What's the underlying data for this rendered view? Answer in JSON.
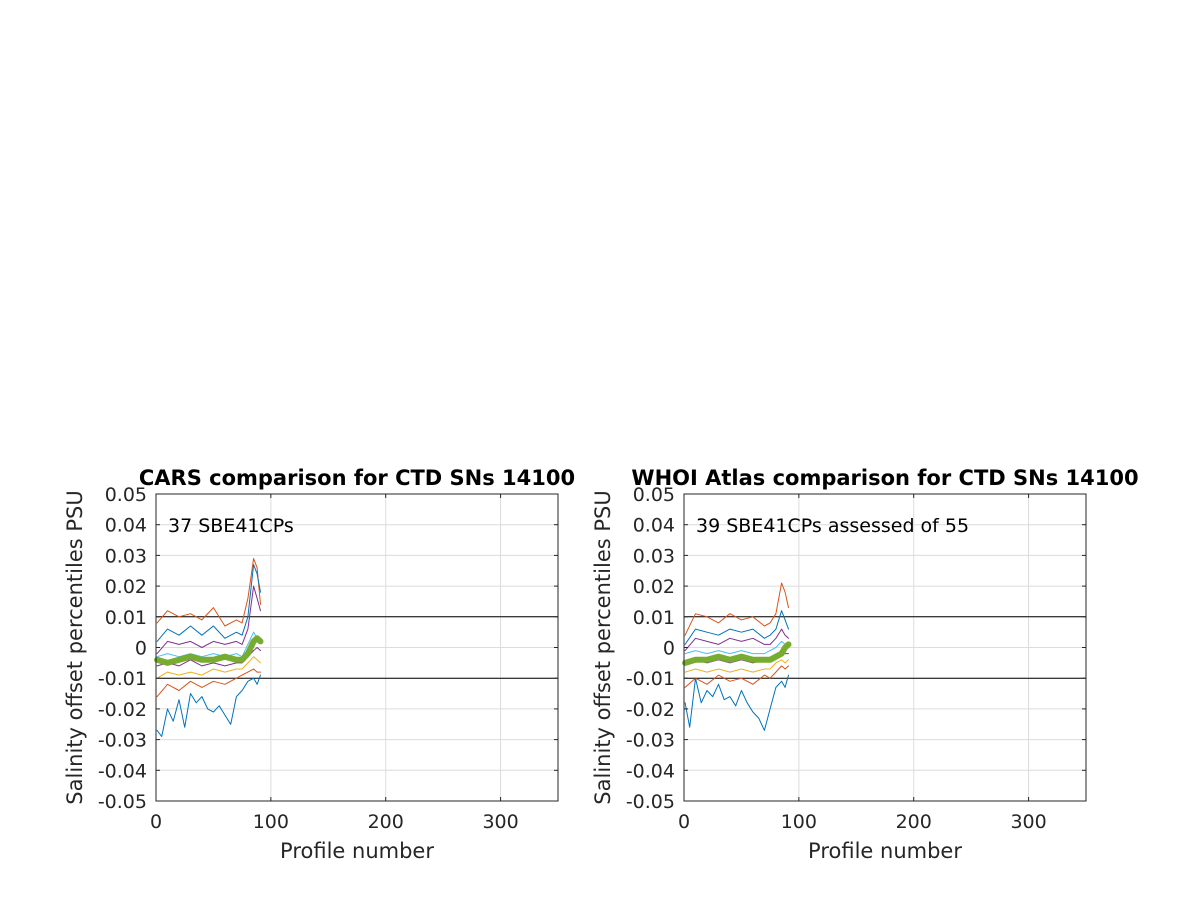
{
  "chart_data": [
    {
      "type": "line",
      "title": "CARS comparison for CTD SNs 14100",
      "xlabel": "Profile number",
      "ylabel": "Salinity offset percentiles PSU",
      "annotation": "37 SBE41CPs",
      "xlim": [
        0,
        350
      ],
      "ylim": [
        -0.05,
        0.05
      ],
      "xticks": [
        "0",
        "100",
        "200",
        "300"
      ],
      "yticks": [
        "-0.05",
        "-0.04",
        "-0.03",
        "-0.02",
        "-0.01",
        "0",
        "0.01",
        "0.02",
        "0.03",
        "0.04",
        "0.05"
      ],
      "grid": true,
      "reference_lines": [
        0.01,
        -0.01
      ],
      "series": [
        {
          "color": "#D95319",
          "x": [
            1,
            10,
            20,
            30,
            40,
            50,
            60,
            70,
            75,
            80,
            85,
            88,
            91
          ],
          "y": [
            0.008,
            0.012,
            0.01,
            0.011,
            0.009,
            0.013,
            0.007,
            0.009,
            0.008,
            0.016,
            0.029,
            0.026,
            0.014
          ]
        },
        {
          "color": "#0072BD",
          "x": [
            1,
            10,
            20,
            30,
            40,
            50,
            60,
            70,
            75,
            80,
            85,
            88,
            91
          ],
          "y": [
            0.002,
            0.006,
            0.004,
            0.007,
            0.004,
            0.007,
            0.003,
            0.005,
            0.004,
            0.01,
            0.027,
            0.024,
            0.018
          ]
        },
        {
          "color": "#7E2F8E",
          "x": [
            1,
            10,
            20,
            30,
            40,
            50,
            60,
            70,
            75,
            80,
            85,
            88,
            91
          ],
          "y": [
            -0.002,
            0.002,
            0.001,
            0.002,
            0.0,
            0.002,
            0.001,
            0.002,
            0.001,
            0.006,
            0.02,
            0.016,
            0.012
          ]
        },
        {
          "color": "#4DBEEE",
          "x": [
            1,
            10,
            20,
            30,
            40,
            50,
            60,
            70,
            75,
            80,
            85,
            88,
            91
          ],
          "y": [
            -0.003,
            -0.002,
            -0.003,
            -0.002,
            -0.003,
            -0.002,
            -0.003,
            -0.002,
            -0.003,
            0.001,
            0.005,
            0.003,
            0.002
          ]
        },
        {
          "color": "#7E2F8E",
          "x": [
            1,
            10,
            20,
            30,
            40,
            50,
            60,
            70,
            75,
            80,
            85,
            88,
            91
          ],
          "y": [
            -0.006,
            -0.005,
            -0.006,
            -0.004,
            -0.006,
            -0.005,
            -0.006,
            -0.005,
            -0.005,
            -0.003,
            -0.001,
            0.0,
            -0.001
          ]
        },
        {
          "color": "#EDB120",
          "x": [
            1,
            10,
            20,
            30,
            40,
            50,
            60,
            70,
            75,
            80,
            85,
            88,
            91
          ],
          "y": [
            -0.01,
            -0.008,
            -0.009,
            -0.008,
            -0.009,
            -0.007,
            -0.008,
            -0.007,
            -0.007,
            -0.005,
            -0.003,
            -0.004,
            -0.005
          ]
        },
        {
          "color": "#D95319",
          "x": [
            1,
            10,
            20,
            30,
            40,
            50,
            60,
            70,
            75,
            80,
            85,
            88,
            91
          ],
          "y": [
            -0.016,
            -0.012,
            -0.014,
            -0.011,
            -0.013,
            -0.011,
            -0.012,
            -0.01,
            -0.009,
            -0.008,
            -0.007,
            -0.008,
            -0.008
          ]
        },
        {
          "color": "#0072BD",
          "x": [
            1,
            5,
            10,
            15,
            20,
            25,
            30,
            35,
            40,
            45,
            50,
            55,
            60,
            65,
            70,
            75,
            80,
            85,
            88,
            91
          ],
          "y": [
            -0.027,
            -0.029,
            -0.02,
            -0.024,
            -0.017,
            -0.026,
            -0.015,
            -0.018,
            -0.016,
            -0.02,
            -0.021,
            -0.019,
            -0.022,
            -0.025,
            -0.016,
            -0.014,
            -0.011,
            -0.01,
            -0.012,
            -0.009
          ]
        },
        {
          "color": "#77AC30",
          "width": 6,
          "x": [
            1,
            10,
            20,
            30,
            40,
            50,
            60,
            70,
            75,
            80,
            85,
            88,
            91
          ],
          "y": [
            -0.004,
            -0.005,
            -0.004,
            -0.003,
            -0.004,
            -0.004,
            -0.003,
            -0.004,
            -0.004,
            -0.002,
            0.002,
            0.003,
            0.002
          ]
        }
      ]
    },
    {
      "type": "line",
      "title": "WHOI Atlas comparison for CTD SNs 14100",
      "xlabel": "Profile number",
      "ylabel": "Salinity offset percentiles PSU",
      "annotation": "39 SBE41CPs assessed of 55",
      "xlim": [
        0,
        350
      ],
      "ylim": [
        -0.05,
        0.05
      ],
      "xticks": [
        "0",
        "100",
        "200",
        "300"
      ],
      "yticks": [
        "-0.05",
        "-0.04",
        "-0.03",
        "-0.02",
        "-0.01",
        "0",
        "0.01",
        "0.02",
        "0.03",
        "0.04",
        "0.05"
      ],
      "grid": true,
      "reference_lines": [
        0.01,
        -0.01
      ],
      "series": [
        {
          "color": "#D95319",
          "x": [
            1,
            10,
            20,
            30,
            40,
            50,
            60,
            70,
            75,
            80,
            85,
            88,
            91
          ],
          "y": [
            0.004,
            0.011,
            0.01,
            0.008,
            0.011,
            0.009,
            0.01,
            0.007,
            0.008,
            0.011,
            0.021,
            0.018,
            0.013
          ]
        },
        {
          "color": "#0072BD",
          "x": [
            1,
            10,
            20,
            30,
            40,
            50,
            60,
            70,
            75,
            80,
            85,
            88,
            91
          ],
          "y": [
            0.001,
            0.006,
            0.005,
            0.004,
            0.006,
            0.005,
            0.006,
            0.003,
            0.004,
            0.006,
            0.012,
            0.009,
            0.006
          ]
        },
        {
          "color": "#7E2F8E",
          "x": [
            1,
            10,
            20,
            30,
            40,
            50,
            60,
            70,
            75,
            80,
            85,
            88,
            91
          ],
          "y": [
            -0.001,
            0.003,
            0.002,
            0.001,
            0.003,
            0.002,
            0.003,
            0.001,
            0.001,
            0.003,
            0.006,
            0.004,
            0.003
          ]
        },
        {
          "color": "#4DBEEE",
          "x": [
            1,
            10,
            20,
            30,
            40,
            50,
            60,
            70,
            75,
            80,
            85,
            88,
            91
          ],
          "y": [
            -0.002,
            -0.001,
            -0.002,
            -0.001,
            -0.002,
            -0.001,
            -0.002,
            -0.002,
            -0.001,
            0.0,
            0.002,
            0.001,
            0.0
          ]
        },
        {
          "color": "#7E2F8E",
          "x": [
            1,
            10,
            20,
            30,
            40,
            50,
            60,
            70,
            75,
            80,
            85,
            88,
            91
          ],
          "y": [
            -0.005,
            -0.004,
            -0.005,
            -0.004,
            -0.005,
            -0.004,
            -0.005,
            -0.004,
            -0.004,
            -0.003,
            -0.002,
            -0.002,
            -0.002
          ]
        },
        {
          "color": "#EDB120",
          "x": [
            1,
            10,
            20,
            30,
            40,
            50,
            60,
            70,
            75,
            80,
            85,
            88,
            91
          ],
          "y": [
            -0.008,
            -0.007,
            -0.008,
            -0.007,
            -0.008,
            -0.007,
            -0.008,
            -0.007,
            -0.007,
            -0.005,
            -0.004,
            -0.005,
            -0.004
          ]
        },
        {
          "color": "#D95319",
          "x": [
            1,
            10,
            20,
            30,
            40,
            50,
            60,
            70,
            75,
            80,
            85,
            88,
            91
          ],
          "y": [
            -0.013,
            -0.01,
            -0.012,
            -0.009,
            -0.011,
            -0.01,
            -0.012,
            -0.009,
            -0.01,
            -0.008,
            -0.006,
            -0.007,
            -0.006
          ]
        },
        {
          "color": "#0072BD",
          "x": [
            1,
            5,
            10,
            15,
            20,
            25,
            30,
            35,
            40,
            45,
            50,
            55,
            60,
            65,
            70,
            75,
            80,
            85,
            88,
            91
          ],
          "y": [
            -0.018,
            -0.026,
            -0.01,
            -0.018,
            -0.014,
            -0.016,
            -0.012,
            -0.017,
            -0.016,
            -0.019,
            -0.014,
            -0.018,
            -0.021,
            -0.023,
            -0.027,
            -0.02,
            -0.013,
            -0.011,
            -0.013,
            -0.009
          ]
        },
        {
          "color": "#77AC30",
          "width": 6,
          "x": [
            1,
            10,
            20,
            30,
            40,
            50,
            60,
            70,
            75,
            80,
            85,
            88,
            91
          ],
          "y": [
            -0.005,
            -0.004,
            -0.004,
            -0.003,
            -0.004,
            -0.003,
            -0.004,
            -0.004,
            -0.004,
            -0.003,
            -0.002,
            0.0,
            0.001
          ]
        }
      ]
    }
  ]
}
